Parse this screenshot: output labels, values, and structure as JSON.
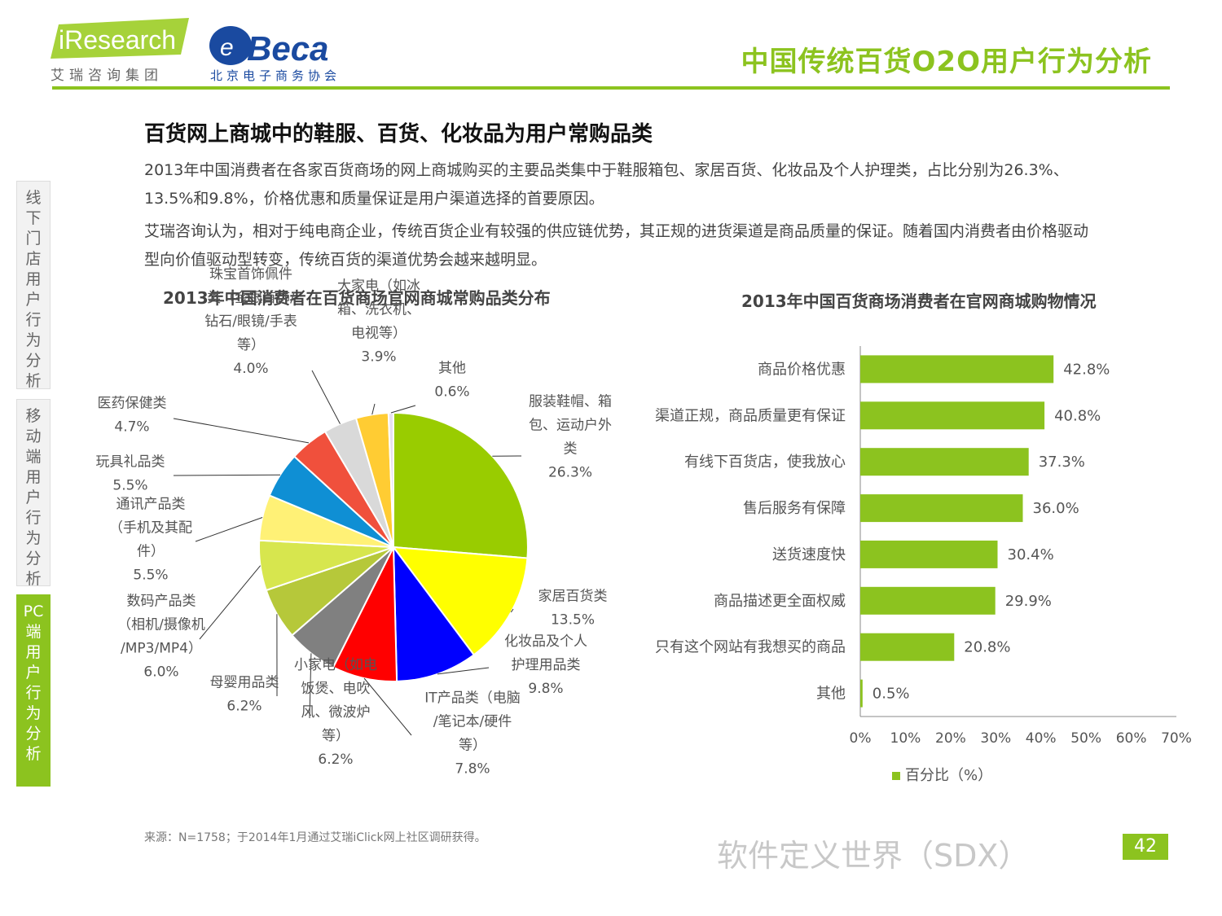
{
  "header": {
    "logo_iresearch": "iResearch",
    "logo_iresearch_sub": "艾瑞咨询集团",
    "logo_beca": "Beca",
    "logo_beca_sub": "北京电子商务协会",
    "title": "中国传统百货O2O用户行为分析"
  },
  "side_nav": [
    {
      "label": "线下门店用户行为分析",
      "active": false
    },
    {
      "label": "移动端用户行为分析",
      "active": false
    },
    {
      "label": "PC端用户行为分析",
      "active": true
    }
  ],
  "headline": "百货网上商城中的鞋服、百货、化妆品为用户常购品类",
  "paragraph1": "2013年中国消费者在各家百货商场的网上商城购买的主要品类集中于鞋服箱包、家居百货、化妆品及个人护理类，占比分别为26.3%、13.5%和9.8%，价格优惠和质量保证是用户渠道选择的首要原因。",
  "paragraph2": "艾瑞咨询认为，相对于纯电商企业，传统百货企业有较强的供应链优势，其正规的进货渠道是商品质量的保证。随着国内消费者由价格驱动型向价值驱动型转变，传统百货的渠道优势会越来越明显。",
  "chart_data": [
    {
      "type": "pie",
      "title": "2013年中国消费者在百货商场官网商城常购品类分布",
      "slices": [
        {
          "label": [
            "服装鞋帽、箱",
            "包、运动户外",
            "类"
          ],
          "value": 26.3,
          "value_text": "26.3%",
          "color": "#99cc00"
        },
        {
          "label": [
            "家居百货类"
          ],
          "value": 13.5,
          "value_text": "13.5%",
          "color": "#ffff00"
        },
        {
          "label": [
            "化妆品及个人",
            "护理用品类"
          ],
          "value": 9.8,
          "value_text": "9.8%",
          "color": "#0000ff"
        },
        {
          "label": [
            "IT产品类（电脑",
            "/笔记本/硬件",
            "等）"
          ],
          "value": 7.8,
          "value_text": "7.8%",
          "color": "#ff0000"
        },
        {
          "label": [
            "小家电（如电",
            "饭煲、电吹",
            "风、微波炉",
            "等）"
          ],
          "value": 6.2,
          "value_text": "6.2%",
          "color": "#808080"
        },
        {
          "label": [
            "母婴用品类"
          ],
          "value": 6.2,
          "value_text": "6.2%",
          "color": "#b6c83a"
        },
        {
          "label": [
            "数码产品类",
            "（相机/摄像机",
            "/MP3/MP4）"
          ],
          "value": 6.0,
          "value_text": "6.0%",
          "color": "#d7e64e"
        },
        {
          "label": [
            "通讯产品类",
            "（手机及其配",
            "件）"
          ],
          "value": 5.5,
          "value_text": "5.5%",
          "color": "#fff176"
        },
        {
          "label": [
            "玩具礼品类"
          ],
          "value": 5.5,
          "value_text": "5.5%",
          "color": "#0f8fd4"
        },
        {
          "label": [
            "医药保健类"
          ],
          "value": 4.7,
          "value_text": "4.7%",
          "color": "#f0503c"
        },
        {
          "label": [
            "珠宝首饰佩件",
            "类（金银首饰/",
            "钻石/眼镜/手表",
            "等）"
          ],
          "value": 4.0,
          "value_text": "4.0%",
          "color": "#d9d9d9"
        },
        {
          "label": [
            "大家电（如冰",
            "箱、洗衣机、",
            "电视等）"
          ],
          "value": 3.9,
          "value_text": "3.9%",
          "color": "#ffcc33"
        },
        {
          "label": [
            "其他"
          ],
          "value": 0.6,
          "value_text": "0.6%",
          "color": "#e6e0f0"
        }
      ]
    },
    {
      "type": "bar",
      "orientation": "horizontal",
      "title": "2013年中国百货商场消费者在官网商城购物情况",
      "categories": [
        "商品价格优惠",
        "渠道正规，商品质量更有保证",
        "有线下百货店，使我放心",
        "售后服务有保障",
        "送货速度快",
        "商品描述更全面权威",
        "只有这个网站有我想买的商品",
        "其他"
      ],
      "series": [
        {
          "name": "百分比（%）",
          "values": [
            42.8,
            40.8,
            37.3,
            36.0,
            30.4,
            29.9,
            20.8,
            0.5
          ],
          "color": "#8cc31f"
        }
      ],
      "value_labels": [
        "42.8%",
        "40.8%",
        "37.3%",
        "36.0%",
        "30.4%",
        "29.9%",
        "20.8%",
        "0.5%"
      ],
      "xlim": [
        0,
        70
      ],
      "xticks": [
        "0%",
        "10%",
        "20%",
        "30%",
        "40%",
        "50%",
        "60%",
        "70%"
      ],
      "legend": "bottom"
    }
  ],
  "footer": {
    "source": "来源：N=1758；于2014年1月通过艾瑞iClick网上社区调研获得。",
    "watermark": "软件定义世界（SDX）",
    "page_number": "42"
  }
}
